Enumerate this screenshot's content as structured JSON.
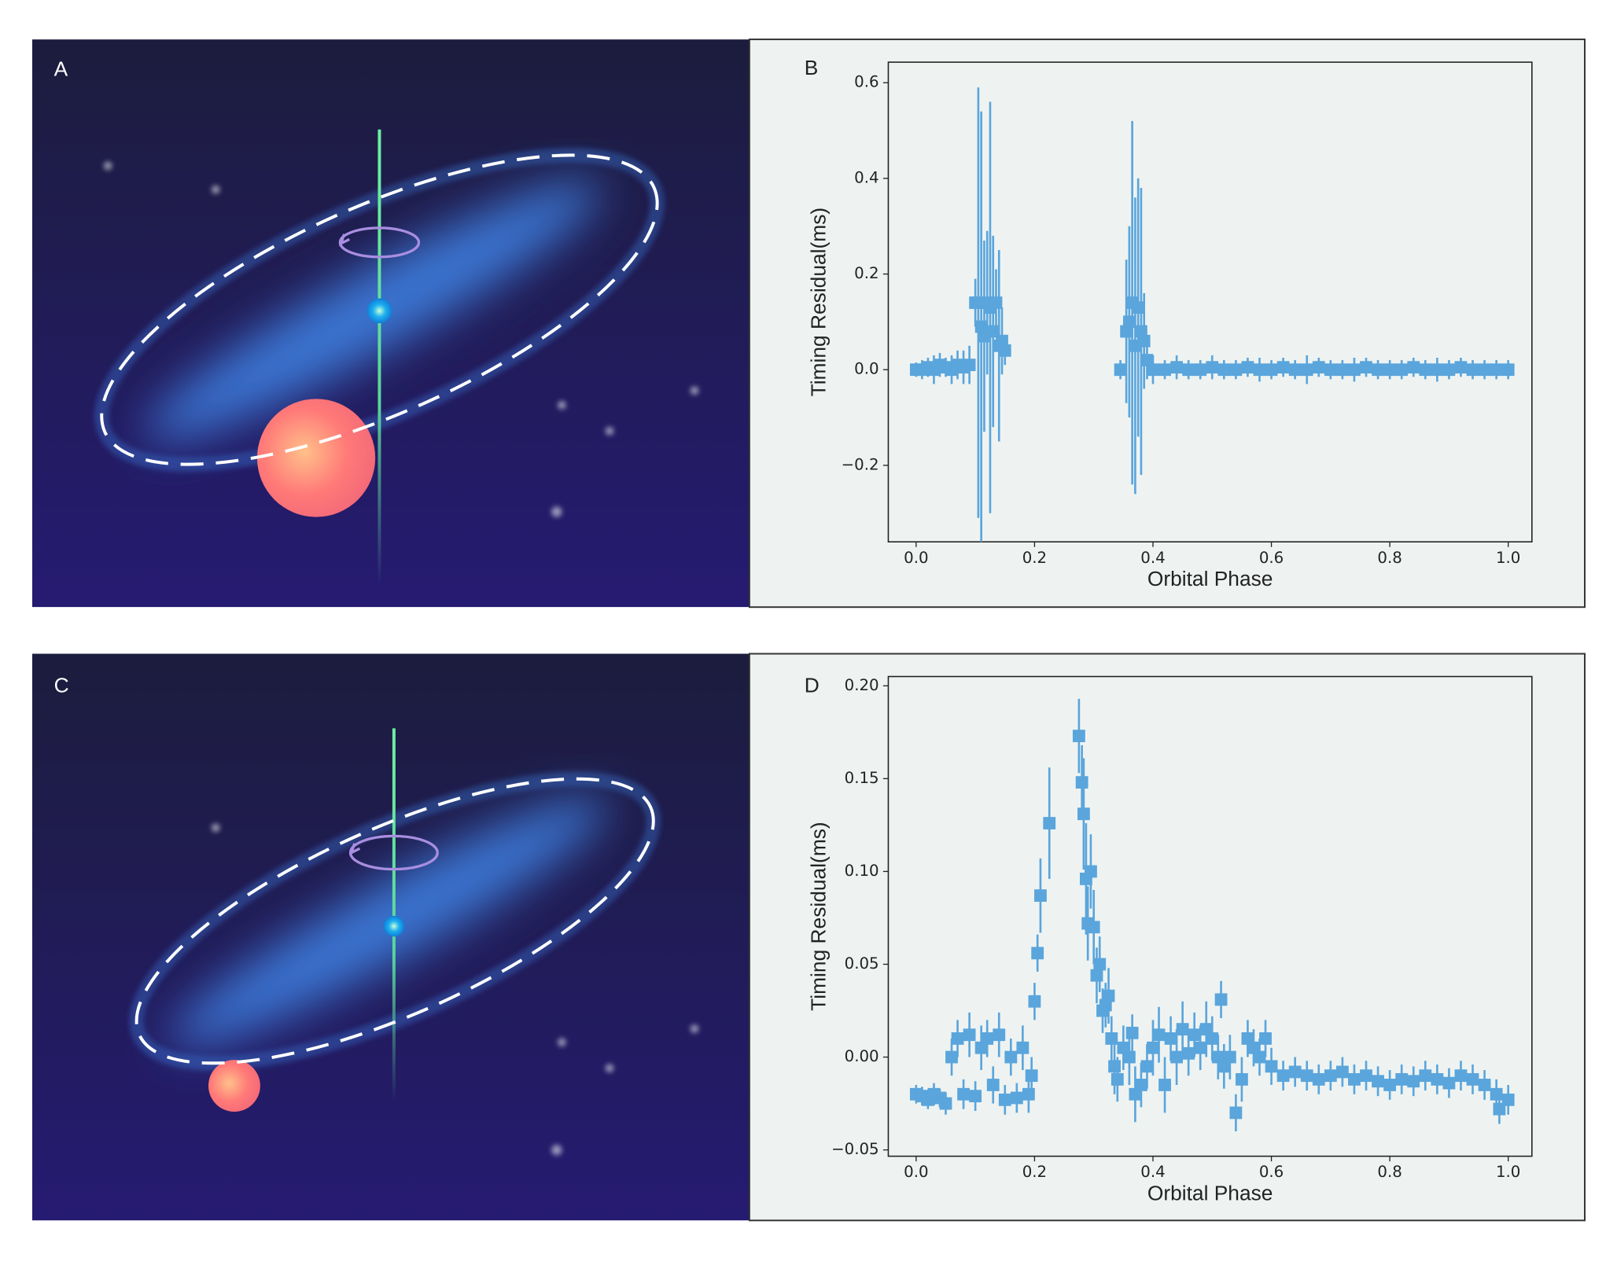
{
  "panels": [
    {
      "label": "A"
    },
    {
      "label": "C"
    }
  ],
  "chart_data": [
    {
      "type": "errorbar",
      "panel_label": "B",
      "xlabel": "Orbital Phase",
      "ylabel": "Timing Residual(ms)",
      "color": "#5aa5dc",
      "x": [
        0.0,
        0.01,
        0.02,
        0.03,
        0.04,
        0.05,
        0.06,
        0.07,
        0.08,
        0.09,
        0.1,
        0.105,
        0.11,
        0.115,
        0.12,
        0.125,
        0.13,
        0.135,
        0.14,
        0.145,
        0.15,
        0.345,
        0.355,
        0.36,
        0.365,
        0.37,
        0.375,
        0.38,
        0.385,
        0.39,
        0.4,
        0.42,
        0.44,
        0.46,
        0.48,
        0.5,
        0.52,
        0.54,
        0.56,
        0.58,
        0.6,
        0.62,
        0.64,
        0.66,
        0.68,
        0.7,
        0.72,
        0.74,
        0.76,
        0.78,
        0.8,
        0.82,
        0.84,
        0.86,
        0.88,
        0.9,
        0.92,
        0.94,
        0.96,
        0.98,
        1.0
      ],
      "values": [
        0.0,
        0.0,
        0.005,
        0.0,
        0.01,
        0.005,
        0.0,
        0.01,
        0.005,
        0.01,
        0.14,
        0.14,
        0.09,
        0.07,
        0.14,
        0.13,
        0.08,
        0.14,
        0.05,
        0.06,
        0.04,
        0.0,
        0.08,
        0.1,
        0.14,
        0.05,
        0.13,
        0.08,
        0.06,
        0.02,
        0.0,
        0.0,
        0.005,
        0.0,
        0.0,
        0.005,
        0.0,
        0.0,
        0.005,
        0.0,
        0.0,
        0.005,
        0.0,
        0.0,
        0.005,
        0.0,
        0.0,
        0.0,
        0.005,
        0.0,
        0.0,
        0.0,
        0.005,
        0.0,
        0.0,
        0.0,
        0.005,
        0.0,
        0.0,
        0.0,
        0.0
      ],
      "errors": [
        0.015,
        0.02,
        0.02,
        0.03,
        0.025,
        0.02,
        0.03,
        0.03,
        0.035,
        0.04,
        0.05,
        0.45,
        0.45,
        0.2,
        0.15,
        0.43,
        0.2,
        0.07,
        0.2,
        0.07,
        0.03,
        0.02,
        0.15,
        0.2,
        0.38,
        0.31,
        0.27,
        0.3,
        0.1,
        0.04,
        0.03,
        0.02,
        0.025,
        0.02,
        0.02,
        0.025,
        0.02,
        0.02,
        0.02,
        0.025,
        0.02,
        0.02,
        0.02,
        0.03,
        0.02,
        0.02,
        0.02,
        0.025,
        0.02,
        0.02,
        0.02,
        0.02,
        0.02,
        0.02,
        0.025,
        0.02,
        0.02,
        0.02,
        0.02,
        0.02,
        0.02
      ],
      "xlim": [
        -0.047,
        1.04
      ],
      "ylim": [
        -0.36,
        0.643
      ],
      "xticks": [
        {
          "value": 0,
          "label": "0.0"
        },
        0.2,
        0.4,
        0.6,
        0.8,
        {
          "value": 1,
          "label": "1.0"
        }
      ],
      "yticks": [
        {
          "value": -0.2,
          "label": "−0.2"
        },
        {
          "value": 0,
          "label": "0.0"
        },
        0.2,
        0.4,
        0.6
      ]
    },
    {
      "type": "errorbar",
      "panel_label": "D",
      "xlabel": "Orbital Phase",
      "ylabel": "Timing Residual(ms)",
      "color": "#5aa5dc",
      "x": [
        0.0,
        0.01,
        0.02,
        0.03,
        0.04,
        0.05,
        0.06,
        0.07,
        0.08,
        0.09,
        0.1,
        0.11,
        0.12,
        0.13,
        0.14,
        0.15,
        0.16,
        0.17,
        0.18,
        0.19,
        0.195,
        0.2,
        0.205,
        0.21,
        0.225,
        0.275,
        0.28,
        0.283,
        0.287,
        0.29,
        0.295,
        0.3,
        0.305,
        0.31,
        0.315,
        0.32,
        0.325,
        0.33,
        0.335,
        0.34,
        0.35,
        0.36,
        0.365,
        0.37,
        0.38,
        0.39,
        0.4,
        0.41,
        0.42,
        0.43,
        0.44,
        0.45,
        0.46,
        0.47,
        0.48,
        0.49,
        0.5,
        0.51,
        0.515,
        0.52,
        0.53,
        0.54,
        0.55,
        0.56,
        0.57,
        0.58,
        0.59,
        0.6,
        0.62,
        0.64,
        0.66,
        0.68,
        0.7,
        0.72,
        0.74,
        0.76,
        0.78,
        0.8,
        0.82,
        0.84,
        0.86,
        0.88,
        0.9,
        0.92,
        0.94,
        0.96,
        0.98,
        0.985,
        1.0
      ],
      "values": [
        -0.02,
        -0.021,
        -0.023,
        -0.02,
        -0.022,
        -0.025,
        0.0,
        0.01,
        -0.02,
        0.012,
        -0.021,
        0.005,
        0.01,
        -0.015,
        0.012,
        -0.023,
        0.0,
        -0.022,
        0.005,
        -0.02,
        -0.01,
        0.03,
        0.056,
        0.087,
        0.126,
        0.173,
        0.148,
        0.131,
        0.096,
        0.072,
        0.1,
        0.07,
        0.044,
        0.05,
        0.025,
        0.028,
        0.033,
        0.01,
        -0.005,
        -0.012,
        0.005,
        0.0,
        0.013,
        -0.02,
        -0.015,
        -0.005,
        0.005,
        0.012,
        -0.015,
        0.01,
        0.0,
        0.015,
        0.002,
        0.012,
        0.005,
        0.015,
        0.01,
        0.0,
        0.031,
        -0.005,
        0.0,
        -0.03,
        -0.012,
        0.01,
        0.005,
        0.0,
        0.01,
        -0.005,
        -0.01,
        -0.008,
        -0.01,
        -0.012,
        -0.01,
        -0.008,
        -0.012,
        -0.01,
        -0.013,
        -0.015,
        -0.012,
        -0.013,
        -0.01,
        -0.012,
        -0.014,
        -0.01,
        -0.012,
        -0.015,
        -0.02,
        -0.028,
        -0.023
      ],
      "errors": [
        0.005,
        0.005,
        0.005,
        0.006,
        0.005,
        0.006,
        0.01,
        0.01,
        0.008,
        0.012,
        0.008,
        0.012,
        0.01,
        0.01,
        0.012,
        0.008,
        0.01,
        0.008,
        0.012,
        0.01,
        0.01,
        0.01,
        0.01,
        0.02,
        0.03,
        0.02,
        0.02,
        0.03,
        0.03,
        0.02,
        0.02,
        0.02,
        0.015,
        0.015,
        0.012,
        0.012,
        0.015,
        0.012,
        0.015,
        0.012,
        0.012,
        0.015,
        0.01,
        0.015,
        0.012,
        0.012,
        0.015,
        0.015,
        0.015,
        0.012,
        0.015,
        0.015,
        0.012,
        0.012,
        0.012,
        0.015,
        0.012,
        0.012,
        0.01,
        0.012,
        0.012,
        0.01,
        0.012,
        0.01,
        0.01,
        0.01,
        0.01,
        0.01,
        0.008,
        0.008,
        0.008,
        0.008,
        0.008,
        0.008,
        0.008,
        0.008,
        0.008,
        0.008,
        0.008,
        0.008,
        0.008,
        0.008,
        0.008,
        0.008,
        0.008,
        0.008,
        0.008,
        0.008,
        0.008
      ],
      "xlim": [
        -0.047,
        1.04
      ],
      "ylim": [
        -0.0534,
        0.205
      ],
      "xticks": [
        {
          "value": 0,
          "label": "0.0"
        },
        0.2,
        0.4,
        0.6,
        0.8,
        {
          "value": 1,
          "label": "1.0"
        }
      ],
      "yticks": [
        {
          "value": -0.05,
          "label": "−0.05"
        },
        {
          "value": 0,
          "label": "0.00"
        },
        0.05,
        {
          "value": 0.1,
          "label": "0.10"
        },
        0.15,
        {
          "value": 0.2,
          "label": "0.20"
        }
      ]
    }
  ]
}
